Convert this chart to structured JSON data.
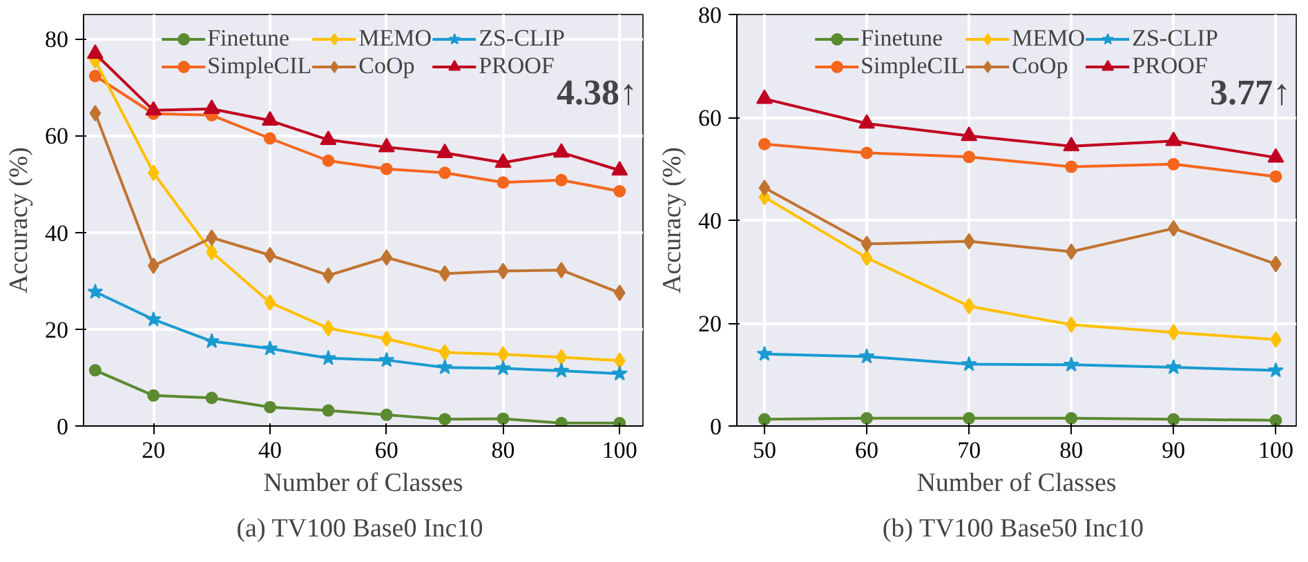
{
  "chart_data": [
    {
      "type": "line",
      "title": "(a)  TV100 Base0 Inc10",
      "xlabel": "Number of Classes",
      "ylabel": "Accuracy (%)",
      "x": [
        10,
        20,
        30,
        40,
        50,
        60,
        70,
        80,
        90,
        100
      ],
      "xlim": [
        8,
        104
      ],
      "ylim": [
        0,
        85
      ],
      "xticks": [
        20,
        40,
        60,
        80,
        100
      ],
      "yticks": [
        0,
        20,
        40,
        60,
        80
      ],
      "grid": true,
      "legend": "top",
      "annotations": [
        "4.38↑"
      ],
      "series": [
        {
          "name": "Finetune",
          "color": "#5b8a31",
          "marker": "circle",
          "values": [
            11.5,
            6.3,
            5.8,
            3.9,
            3.2,
            2.3,
            1.4,
            1.5,
            0.6,
            0.6
          ]
        },
        {
          "name": "SimpleCIL",
          "color": "#f4661c",
          "marker": "circle",
          "values": [
            72.3,
            64.5,
            64.2,
            59.4,
            54.8,
            53.1,
            52.3,
            50.3,
            50.8,
            48.5
          ]
        },
        {
          "name": "MEMO",
          "color": "#ffc000",
          "marker": "diamond",
          "values": [
            75.5,
            52.3,
            35.9,
            25.5,
            20.2,
            18.0,
            15.2,
            14.8,
            14.2,
            13.5
          ]
        },
        {
          "name": "CoOp",
          "color": "#c07430",
          "marker": "diamond",
          "values": [
            64.6,
            33.1,
            38.9,
            35.3,
            31.1,
            34.8,
            31.5,
            32.0,
            32.2,
            27.5
          ]
        },
        {
          "name": "ZS-CLIP",
          "color": "#1a9bd0",
          "marker": "star",
          "values": [
            27.7,
            22.0,
            17.5,
            16.0,
            14.0,
            13.6,
            12.1,
            11.9,
            11.4,
            10.8
          ]
        },
        {
          "name": "PROOF",
          "color": "#c00020",
          "marker": "triangle",
          "values": [
            76.9,
            65.2,
            65.5,
            63.1,
            59.1,
            57.6,
            56.4,
            54.4,
            56.5,
            52.8
          ]
        }
      ]
    },
    {
      "type": "line",
      "title": "(b)  TV100 Base50 Inc10",
      "xlabel": "Number of Classes",
      "ylabel": "Accuracy (%)",
      "x": [
        50,
        60,
        70,
        80,
        90,
        100
      ],
      "xlim": [
        47.3,
        102
      ],
      "ylim": [
        0,
        80
      ],
      "xticks": [
        50,
        60,
        70,
        80,
        90,
        100
      ],
      "yticks": [
        0,
        20,
        40,
        60,
        80
      ],
      "grid": true,
      "legend": "top",
      "annotations": [
        "3.77↑"
      ],
      "series": [
        {
          "name": "Finetune",
          "color": "#5b8a31",
          "marker": "circle",
          "values": [
            1.3,
            1.5,
            1.5,
            1.5,
            1.3,
            1.1
          ]
        },
        {
          "name": "SimpleCIL",
          "color": "#f4661c",
          "marker": "circle",
          "values": [
            54.8,
            53.1,
            52.3,
            50.4,
            50.9,
            48.5
          ]
        },
        {
          "name": "MEMO",
          "color": "#ffc000",
          "marker": "diamond",
          "values": [
            44.5,
            32.7,
            23.3,
            19.7,
            18.2,
            16.8
          ]
        },
        {
          "name": "CoOp",
          "color": "#c07430",
          "marker": "diamond",
          "values": [
            46.3,
            35.4,
            35.9,
            33.9,
            38.4,
            31.5
          ]
        },
        {
          "name": "ZS-CLIP",
          "color": "#1a9bd0",
          "marker": "star",
          "values": [
            14.0,
            13.5,
            12.0,
            11.9,
            11.4,
            10.8
          ]
        },
        {
          "name": "PROOF",
          "color": "#c00020",
          "marker": "triangle",
          "values": [
            63.6,
            58.8,
            56.4,
            54.4,
            55.4,
            52.2
          ]
        }
      ]
    }
  ]
}
